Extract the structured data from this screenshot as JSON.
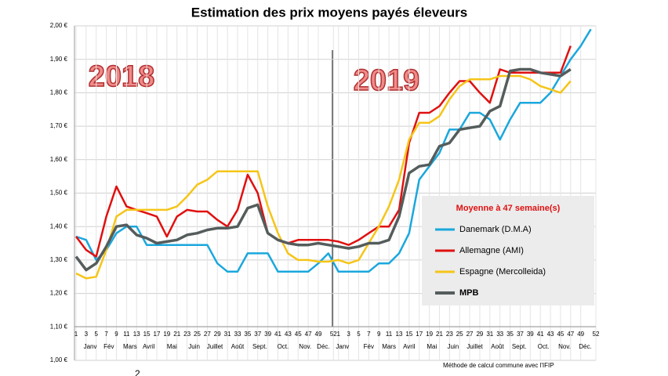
{
  "chart_data": {
    "type": "line",
    "title": "Estimation des prix moyens payés éleveurs",
    "x": [
      1,
      3,
      5,
      7,
      9,
      11,
      13,
      15,
      17,
      19,
      21,
      23,
      25,
      27,
      29,
      31,
      33,
      35,
      37,
      39,
      41,
      43,
      45,
      47,
      49,
      51,
      53,
      55,
      57,
      59,
      61,
      63,
      65,
      67,
      69,
      71,
      73,
      75,
      77,
      79,
      81,
      83,
      85,
      87,
      89,
      91,
      93,
      95,
      97,
      99,
      101,
      103
    ],
    "series": [
      {
        "name": "Danemark (D.M.A)",
        "color": "#1aa7dd",
        "values": [
          1.37,
          1.36,
          1.3,
          1.33,
          1.38,
          1.4,
          1.4,
          1.345,
          1.345,
          1.345,
          1.345,
          1.345,
          1.345,
          1.345,
          1.29,
          1.265,
          1.265,
          1.32,
          1.32,
          1.32,
          1.265,
          1.265,
          1.265,
          1.265,
          1.29,
          1.32,
          1.265,
          1.265,
          1.265,
          1.265,
          1.29,
          1.29,
          1.32,
          1.38,
          1.54,
          1.58,
          1.62,
          1.69,
          1.69,
          1.74,
          1.74,
          1.72,
          1.66,
          1.72,
          1.77,
          1.77,
          1.77,
          1.8,
          1.85,
          1.9,
          1.94,
          1.99
        ]
      },
      {
        "name": "Allemagne (AMI)",
        "color": "#e01010",
        "values": [
          1.37,
          1.33,
          1.31,
          1.43,
          1.52,
          1.46,
          1.45,
          1.44,
          1.43,
          1.37,
          1.43,
          1.45,
          1.445,
          1.445,
          1.42,
          1.4,
          1.45,
          1.555,
          1.5,
          1.38,
          1.36,
          1.35,
          1.36,
          1.36,
          1.36,
          1.36,
          1.355,
          1.345,
          1.36,
          1.38,
          1.4,
          1.4,
          1.45,
          1.65,
          1.74,
          1.74,
          1.76,
          1.8,
          1.835,
          1.835,
          1.8,
          1.77,
          1.87,
          1.86,
          1.86,
          1.86,
          1.86,
          1.86,
          1.86,
          1.94,
          null,
          null
        ]
      },
      {
        "name": "Espagne (Mercolleida)",
        "color": "#f5c518",
        "values": [
          1.26,
          1.245,
          1.25,
          1.33,
          1.43,
          1.45,
          1.45,
          1.45,
          1.45,
          1.45,
          1.46,
          1.49,
          1.525,
          1.54,
          1.565,
          1.565,
          1.565,
          1.565,
          1.565,
          1.46,
          1.38,
          1.32,
          1.3,
          1.3,
          1.295,
          1.295,
          1.3,
          1.29,
          1.3,
          1.35,
          1.4,
          1.46,
          1.54,
          1.66,
          1.71,
          1.71,
          1.73,
          1.78,
          1.82,
          1.84,
          1.84,
          1.84,
          1.85,
          1.85,
          1.85,
          1.84,
          1.82,
          1.81,
          1.8,
          1.835,
          null,
          null
        ]
      },
      {
        "name": "MPB",
        "color": "#555c5c",
        "values": [
          1.31,
          1.27,
          1.29,
          1.34,
          1.4,
          1.405,
          1.375,
          1.365,
          1.35,
          1.355,
          1.36,
          1.375,
          1.38,
          1.39,
          1.395,
          1.395,
          1.4,
          1.455,
          1.465,
          1.38,
          1.36,
          1.35,
          1.345,
          1.345,
          1.35,
          1.345,
          1.34,
          1.335,
          1.34,
          1.35,
          1.35,
          1.36,
          1.43,
          1.56,
          1.58,
          1.585,
          1.64,
          1.65,
          1.69,
          1.695,
          1.7,
          1.745,
          1.76,
          1.865,
          1.87,
          1.87,
          1.86,
          1.855,
          1.85,
          1.87,
          null,
          null
        ]
      }
    ],
    "xlim": [
      1,
      104
    ],
    "xticks": [
      1,
      3,
      5,
      7,
      9,
      11,
      13,
      15,
      17,
      19,
      21,
      23,
      25,
      27,
      29,
      31,
      33,
      35,
      37,
      39,
      41,
      43,
      45,
      47,
      49,
      52,
      {
        "value": 53,
        "label": "1"
      },
      {
        "value": 55,
        "label": "3"
      },
      {
        "value": 57,
        "label": "5"
      },
      {
        "value": 59,
        "label": "7"
      },
      {
        "value": 61,
        "label": "9"
      },
      {
        "value": 63,
        "label": "11"
      },
      {
        "value": 65,
        "label": "13"
      },
      {
        "value": 67,
        "label": "15"
      },
      {
        "value": 69,
        "label": "17"
      },
      {
        "value": 71,
        "label": "19"
      },
      {
        "value": 73,
        "label": "21"
      },
      {
        "value": 75,
        "label": "23"
      },
      {
        "value": 77,
        "label": "25"
      },
      {
        "value": 79,
        "label": "27"
      },
      {
        "value": 81,
        "label": "29"
      },
      {
        "value": 83,
        "label": "31"
      },
      {
        "value": 85,
        "label": "33"
      },
      {
        "value": 87,
        "label": "35"
      },
      {
        "value": 89,
        "label": "37"
      },
      {
        "value": 91,
        "label": "39"
      },
      {
        "value": 93,
        "label": "41"
      },
      {
        "value": 95,
        "label": "43"
      },
      {
        "value": 97,
        "label": "45"
      },
      {
        "value": 99,
        "label": "47"
      },
      {
        "value": 101,
        "label": "49"
      },
      {
        "value": 104,
        "label": "52"
      }
    ],
    "month_labels": [
      {
        "value": 3.8,
        "label": "Janv"
      },
      {
        "value": 7.5,
        "label": "Fév"
      },
      {
        "value": 11.7,
        "label": "Mars"
      },
      {
        "value": 15.4,
        "label": "Avril"
      },
      {
        "value": 20,
        "label": "Mai"
      },
      {
        "value": 24.4,
        "label": "Juin"
      },
      {
        "value": 28.5,
        "label": "Juillet"
      },
      {
        "value": 33,
        "label": "Août"
      },
      {
        "value": 37.4,
        "label": "Sept."
      },
      {
        "value": 42,
        "label": "Oct."
      },
      {
        "value": 46.4,
        "label": "Nov."
      },
      {
        "value": 50,
        "label": "Déc."
      },
      {
        "value": 53.8,
        "label": "Janv"
      },
      {
        "value": 59,
        "label": "Fév"
      },
      {
        "value": 63,
        "label": "Mars"
      },
      {
        "value": 67,
        "label": "Avril"
      },
      {
        "value": 71.5,
        "label": "Mai"
      },
      {
        "value": 75.7,
        "label": "Juin"
      },
      {
        "value": 80,
        "label": "Juillet"
      },
      {
        "value": 84.5,
        "label": "Août"
      },
      {
        "value": 88.8,
        "label": "Sept."
      },
      {
        "value": 93.6,
        "label": "Oct."
      },
      {
        "value": 97.8,
        "label": "Nov."
      },
      {
        "value": 101.9,
        "label": "Déc."
      }
    ],
    "ylim": [
      1.0,
      2.0
    ],
    "yticks": [
      {
        "value": 1.0,
        "label": "1,00 €"
      },
      {
        "value": 1.1,
        "label": "1,10 €"
      },
      {
        "value": 1.2,
        "label": "1,20 €"
      },
      {
        "value": 1.3,
        "label": "1,30 €"
      },
      {
        "value": 1.4,
        "label": "1,40 €"
      },
      {
        "value": 1.5,
        "label": "1,50 €"
      },
      {
        "value": 1.6,
        "label": "1,60 €"
      },
      {
        "value": 1.7,
        "label": "1,70 €"
      },
      {
        "value": 1.8,
        "label": "1,80 €"
      },
      {
        "value": 1.9,
        "label": "1,90 €"
      },
      {
        "value": 2.0,
        "label": "2,00 €"
      }
    ],
    "grid": true,
    "legend_title": "Moyenne à 47 semaine(s)",
    "legend_position": "lower right",
    "year_labels": [
      "2018",
      "2019"
    ],
    "footnote": "Méthode de calcul commune avec l'IFIP",
    "stray_text": "2"
  }
}
